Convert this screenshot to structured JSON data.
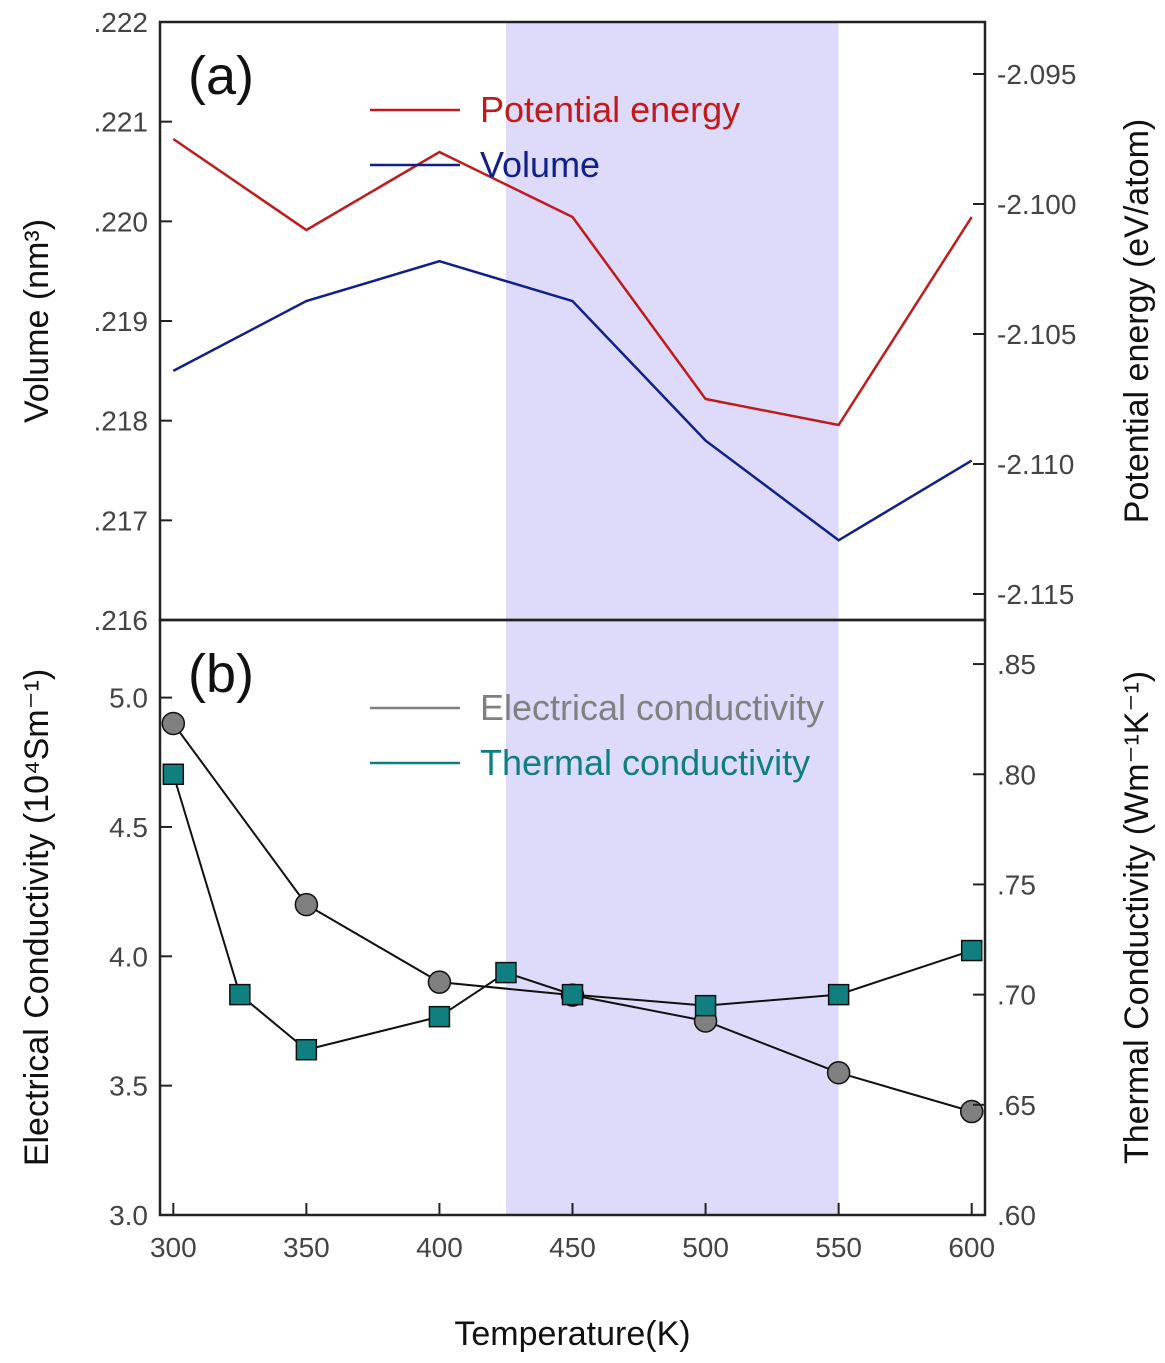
{
  "colors": {
    "volume": "#10208a",
    "potential_energy": "#c11a1a",
    "electrical": "#808080",
    "thermal": "#0f7f80",
    "shade": "#dedbfa",
    "axis": "#222222"
  },
  "chart_data": [
    {
      "type": "line",
      "panel_label": "(a)",
      "title": "",
      "xlabel": "",
      "x_range": [
        295,
        605
      ],
      "left_axis": {
        "label": "Volume (nm³)",
        "range": [
          0.216,
          0.222
        ],
        "ticks": [
          ".216",
          ".217",
          ".218",
          ".219",
          ".220",
          ".221",
          ".222"
        ]
      },
      "right_axis": {
        "label": "Potential energy (eV/atom)",
        "range": [
          -2.116,
          -2.093
        ],
        "ticks": [
          "-2.115",
          "-2.110",
          "-2.105",
          "-2.100",
          "-2.095"
        ]
      },
      "series": [
        {
          "name": "Volume",
          "axis": "left",
          "x": [
            300,
            350,
            400,
            450,
            500,
            550,
            600
          ],
          "y": [
            0.2185,
            0.2192,
            0.2196,
            0.2192,
            0.2178,
            0.2168,
            0.2176
          ]
        },
        {
          "name": "Potential energy",
          "axis": "right",
          "x": [
            300,
            350,
            400,
            450,
            500,
            550,
            600
          ],
          "y": [
            -2.0975,
            -2.101,
            -2.098,
            -2.1005,
            -2.1075,
            -2.1085,
            -2.1005
          ]
        }
      ],
      "legend": [
        "Potential energy",
        "Volume"
      ]
    },
    {
      "type": "line",
      "panel_label": "(b)",
      "title": "",
      "xlabel": "Temperature(K)",
      "x_range": [
        295,
        605
      ],
      "x_ticks": [
        "300",
        "350",
        "400",
        "450",
        "500",
        "550",
        "600"
      ],
      "left_axis": {
        "label": "Electrical Conductivity (10⁴Sm⁻¹)",
        "range": [
          3.0,
          5.3
        ],
        "ticks": [
          "3.0",
          "3.5",
          "4.0",
          "4.5",
          "5.0"
        ]
      },
      "right_axis": {
        "label": "Thermal Conductivity (Wm⁻¹K⁻¹)",
        "range": [
          0.6,
          0.87
        ],
        "ticks": [
          ".60",
          ".65",
          ".70",
          ".75",
          ".80",
          ".85"
        ]
      },
      "series": [
        {
          "name": "Electrical conductivity",
          "axis": "left",
          "marker": "circle",
          "x": [
            300,
            350,
            400,
            450,
            500,
            550,
            600
          ],
          "y": [
            4.9,
            4.2,
            3.9,
            3.85,
            3.75,
            3.55,
            3.4
          ]
        },
        {
          "name": "Thermal conductivity",
          "axis": "right",
          "marker": "square",
          "x": [
            300,
            325,
            350,
            400,
            425,
            450,
            500,
            550,
            600
          ],
          "y": [
            0.8,
            0.7,
            0.675,
            0.69,
            0.71,
            0.7,
            0.695,
            0.7,
            0.72
          ]
        }
      ],
      "legend": [
        "Electrical conductivity",
        "Thermal conductivity"
      ]
    }
  ],
  "shaded_region": [
    425,
    550
  ]
}
